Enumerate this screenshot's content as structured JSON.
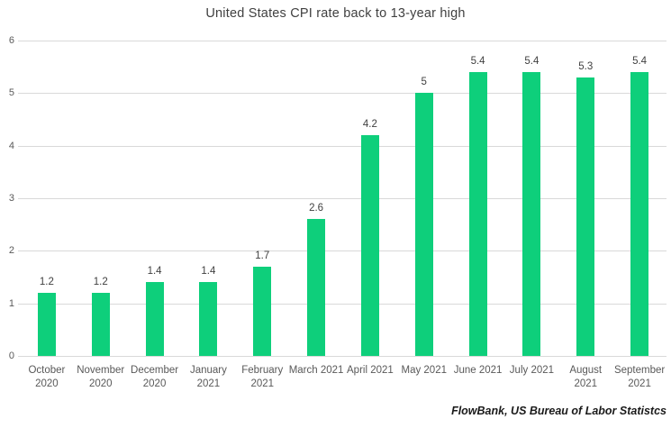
{
  "header": {
    "title": "United States CPI rate back to 13-year high"
  },
  "footer": {
    "source": "FlowBank, US Bureau of Labor Statistcs"
  },
  "colors": {
    "bar": "#0ecf7b",
    "grid": "#d9d9d9",
    "title_text": "#404040",
    "axis_text": "#595959",
    "data_label_text": "#404040",
    "source_text": "#1a1a1a",
    "background": "#ffffff"
  },
  "chart_data": {
    "type": "bar",
    "title": "United States CPI rate back to 13-year high",
    "categories": [
      "October 2020",
      "November 2020",
      "December 2020",
      "January 2021",
      "February 2021",
      "March 2021",
      "April 2021",
      "May 2021",
      "June 2021",
      "July 2021",
      "August 2021",
      "September 2021"
    ],
    "category_lines": [
      [
        "October",
        "2020"
      ],
      [
        "November",
        "2020"
      ],
      [
        "December",
        "2020"
      ],
      [
        "January",
        "2021"
      ],
      [
        "February",
        "2021"
      ],
      [
        "March 2021"
      ],
      [
        "April 2021"
      ],
      [
        "May 2021"
      ],
      [
        "June 2021"
      ],
      [
        "July 2021"
      ],
      [
        "August",
        "2021"
      ],
      [
        "September",
        "2021"
      ]
    ],
    "values": [
      1.2,
      1.2,
      1.4,
      1.4,
      1.7,
      2.6,
      4.2,
      5,
      5.4,
      5.4,
      5.3,
      5.4
    ],
    "data_labels": [
      "1.2",
      "1.2",
      "1.4",
      "1.4",
      "1.7",
      "2.6",
      "4.2",
      "5",
      "5.4",
      "5.4",
      "5.3",
      "5.4"
    ],
    "xlabel": "",
    "ylabel": "",
    "ylim": [
      0,
      6
    ],
    "yticks": [
      0,
      1,
      2,
      3,
      4,
      5,
      6
    ],
    "grid": "horizontal",
    "legend": "none",
    "source": "FlowBank, US Bureau of Labor Statistcs"
  }
}
